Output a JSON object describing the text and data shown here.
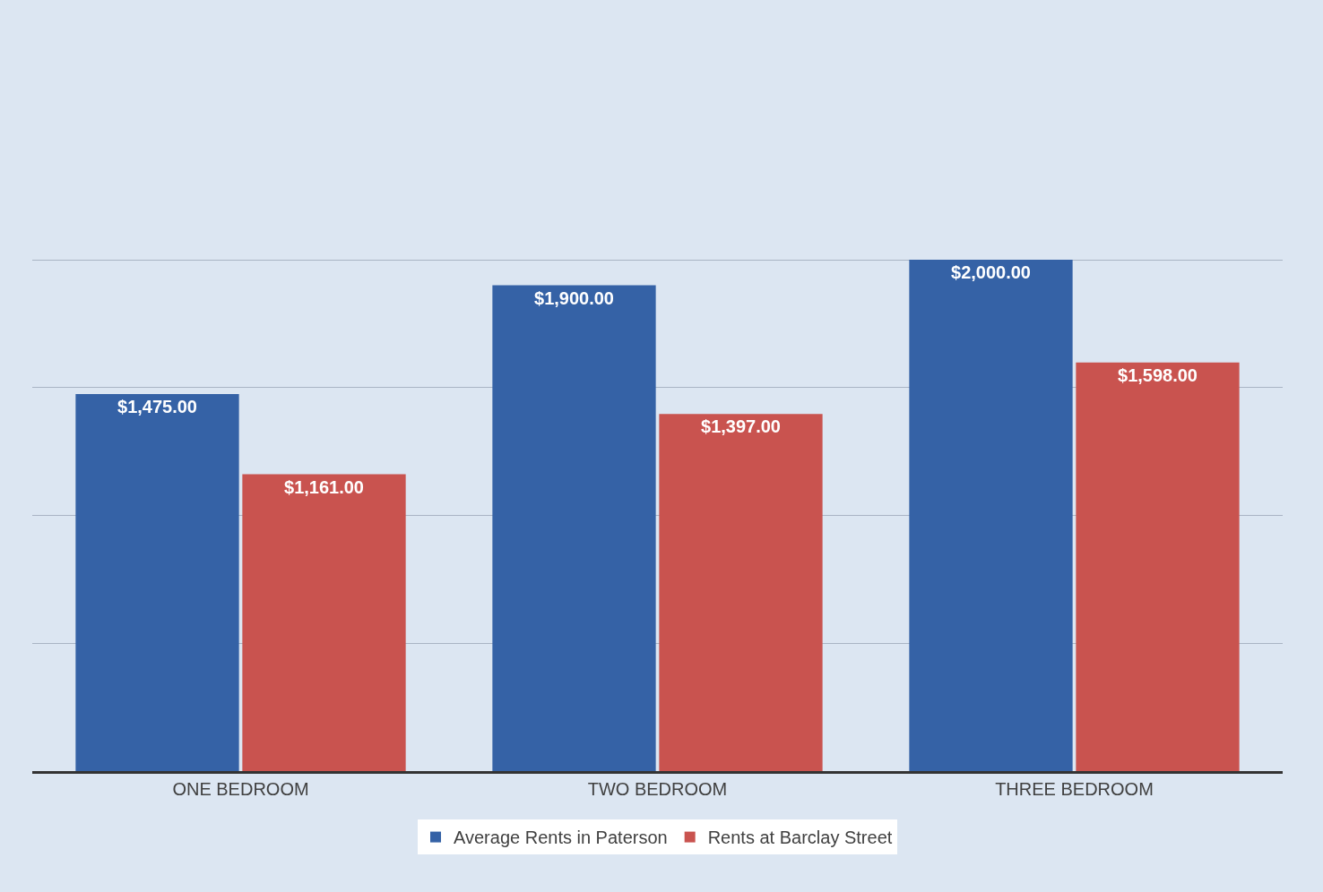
{
  "chart_data": {
    "type": "bar",
    "categories": [
      "ONE BEDROOM",
      "TWO BEDROOM",
      "THREE BEDROOM"
    ],
    "series": [
      {
        "name": "Average Rents in Paterson",
        "color": "#3562a6",
        "values": [
          1475,
          1900,
          2000
        ],
        "value_labels": [
          "$1,475.00",
          "$1,900.00",
          "$2,000.00"
        ]
      },
      {
        "name": "Rents at Barclay Street",
        "color": "#c9534f",
        "values": [
          1161,
          1397,
          1598
        ],
        "value_labels": [
          "$1,161.00",
          "$1,397.00",
          "$1,598.00"
        ]
      }
    ],
    "tick_labels": "x",
    "grid": "y",
    "legend": "bottom"
  }
}
